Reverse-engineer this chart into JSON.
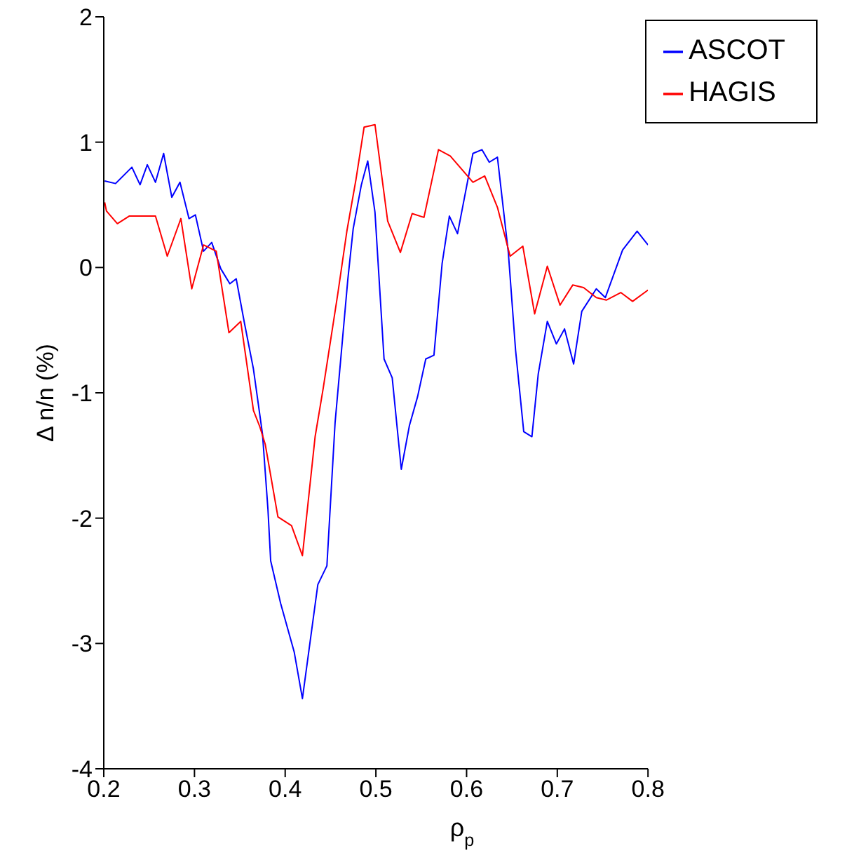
{
  "chart_data": {
    "type": "line",
    "xlabel": "ρ$_{p}$",
    "ylabel": "Δ n/n (%)",
    "xlim": [
      0.2,
      0.8
    ],
    "xticks": [
      0.2,
      0.3,
      0.4,
      0.5,
      0.6,
      0.7,
      0.8
    ],
    "ylim": [
      -4,
      2
    ],
    "yticks": [
      -4,
      -3,
      -2,
      -1,
      0,
      1,
      2
    ],
    "legend": "top right",
    "grid": false,
    "series": [
      {
        "name": "ASCOT",
        "color": "#0000ff",
        "x": [
          0.201,
          0.213,
          0.231,
          0.24,
          0.248,
          0.257,
          0.266,
          0.275,
          0.284,
          0.294,
          0.301,
          0.31,
          0.319,
          0.329,
          0.339,
          0.346,
          0.355,
          0.365,
          0.375,
          0.381,
          0.384,
          0.395,
          0.41,
          0.419,
          0.436,
          0.446,
          0.455,
          0.469,
          0.475,
          0.484,
          0.491,
          0.499,
          0.509,
          0.518,
          0.528,
          0.537,
          0.546,
          0.555,
          0.564,
          0.573,
          0.581,
          0.59,
          0.607,
          0.617,
          0.625,
          0.634,
          0.646,
          0.654,
          0.663,
          0.672,
          0.679,
          0.689,
          0.699,
          0.708,
          0.718,
          0.727,
          0.743,
          0.753,
          0.772,
          0.788,
          0.8
        ],
        "values": [
          0.69,
          0.67,
          0.8,
          0.66,
          0.82,
          0.68,
          0.91,
          0.56,
          0.68,
          0.39,
          0.42,
          0.13,
          0.2,
          -0.01,
          -0.13,
          -0.09,
          -0.44,
          -0.81,
          -1.33,
          -1.93,
          -2.34,
          -2.68,
          -3.07,
          -3.44,
          -2.53,
          -2.38,
          -1.24,
          -0.1,
          0.31,
          0.66,
          0.85,
          0.44,
          -0.73,
          -0.88,
          -1.61,
          -1.26,
          -1.03,
          -0.73,
          -0.7,
          0.03,
          0.41,
          0.27,
          0.91,
          0.94,
          0.84,
          0.88,
          0.12,
          -0.66,
          -1.31,
          -1.35,
          -0.85,
          -0.43,
          -0.61,
          -0.49,
          -0.77,
          -0.35,
          -0.17,
          -0.24,
          0.14,
          0.29,
          0.18
        ]
      },
      {
        "name": "HAGIS",
        "color": "#ff0000",
        "x": [
          0.201,
          0.203,
          0.215,
          0.228,
          0.257,
          0.27,
          0.285,
          0.297,
          0.31,
          0.324,
          0.338,
          0.351,
          0.365,
          0.372,
          0.378,
          0.392,
          0.407,
          0.419,
          0.433,
          0.442,
          0.458,
          0.468,
          0.478,
          0.487,
          0.499,
          0.513,
          0.527,
          0.54,
          0.553,
          0.569,
          0.582,
          0.607,
          0.62,
          0.634,
          0.648,
          0.662,
          0.675,
          0.689,
          0.703,
          0.717,
          0.729,
          0.743,
          0.754,
          0.77,
          0.783,
          0.8
        ],
        "values": [
          0.52,
          0.45,
          0.35,
          0.41,
          0.41,
          0.09,
          0.39,
          -0.17,
          0.18,
          0.13,
          -0.52,
          -0.43,
          -1.14,
          -1.27,
          -1.41,
          -1.99,
          -2.06,
          -2.3,
          -1.35,
          -0.96,
          -0.21,
          0.29,
          0.7,
          1.12,
          1.14,
          0.37,
          0.12,
          0.43,
          0.4,
          0.94,
          0.89,
          0.68,
          0.73,
          0.48,
          0.09,
          0.17,
          -0.37,
          0.01,
          -0.3,
          -0.14,
          -0.16,
          -0.24,
          -0.26,
          -0.2,
          -0.27,
          -0.18
        ]
      }
    ]
  }
}
